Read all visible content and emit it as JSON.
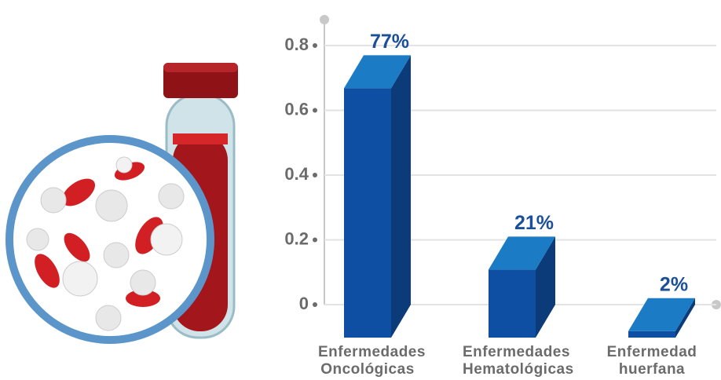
{
  "chart_data": {
    "type": "bar3d",
    "categories": [
      "Enfermedades Oncológicas",
      "Enfermedades Hematológicas",
      "Enfermedad huerfana"
    ],
    "values": [
      0.77,
      0.21,
      0.02
    ],
    "value_labels": [
      "77%",
      "21%",
      "2%"
    ],
    "color": "#0f4fa3",
    "ylim": [
      0,
      0.8
    ],
    "yticks": [
      0,
      0.2,
      0.4,
      0.6,
      0.8
    ],
    "grid": true
  }
}
